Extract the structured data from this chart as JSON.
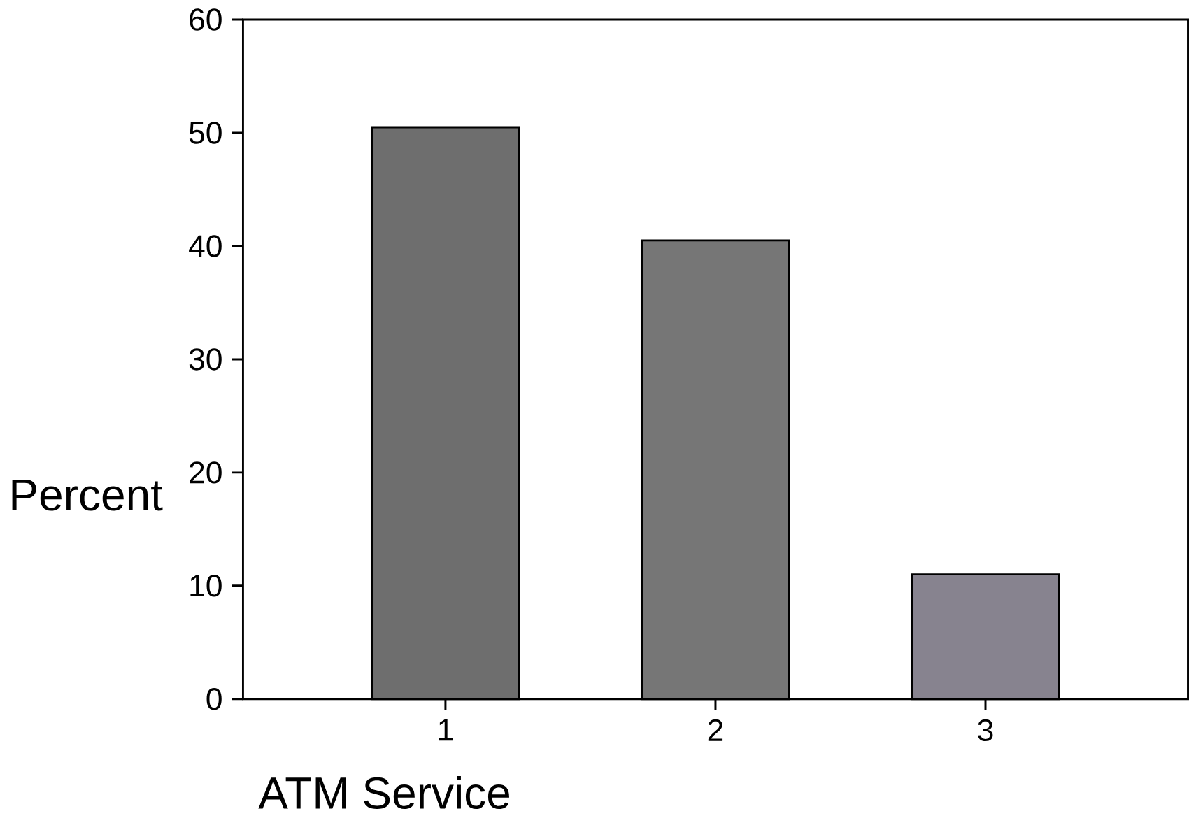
{
  "chart_data": {
    "type": "bar",
    "xlabel": "ATM Service",
    "ylabel": "Percent",
    "categories": [
      "1",
      "2",
      "3"
    ],
    "values": [
      50.5,
      40.5,
      11
    ],
    "colors": [
      "#6e6e6e",
      "#767676",
      "#87838f"
    ],
    "ylim": [
      0,
      60
    ],
    "yticks": [
      0,
      10,
      20,
      30,
      40,
      50,
      60
    ],
    "grid": false
  }
}
